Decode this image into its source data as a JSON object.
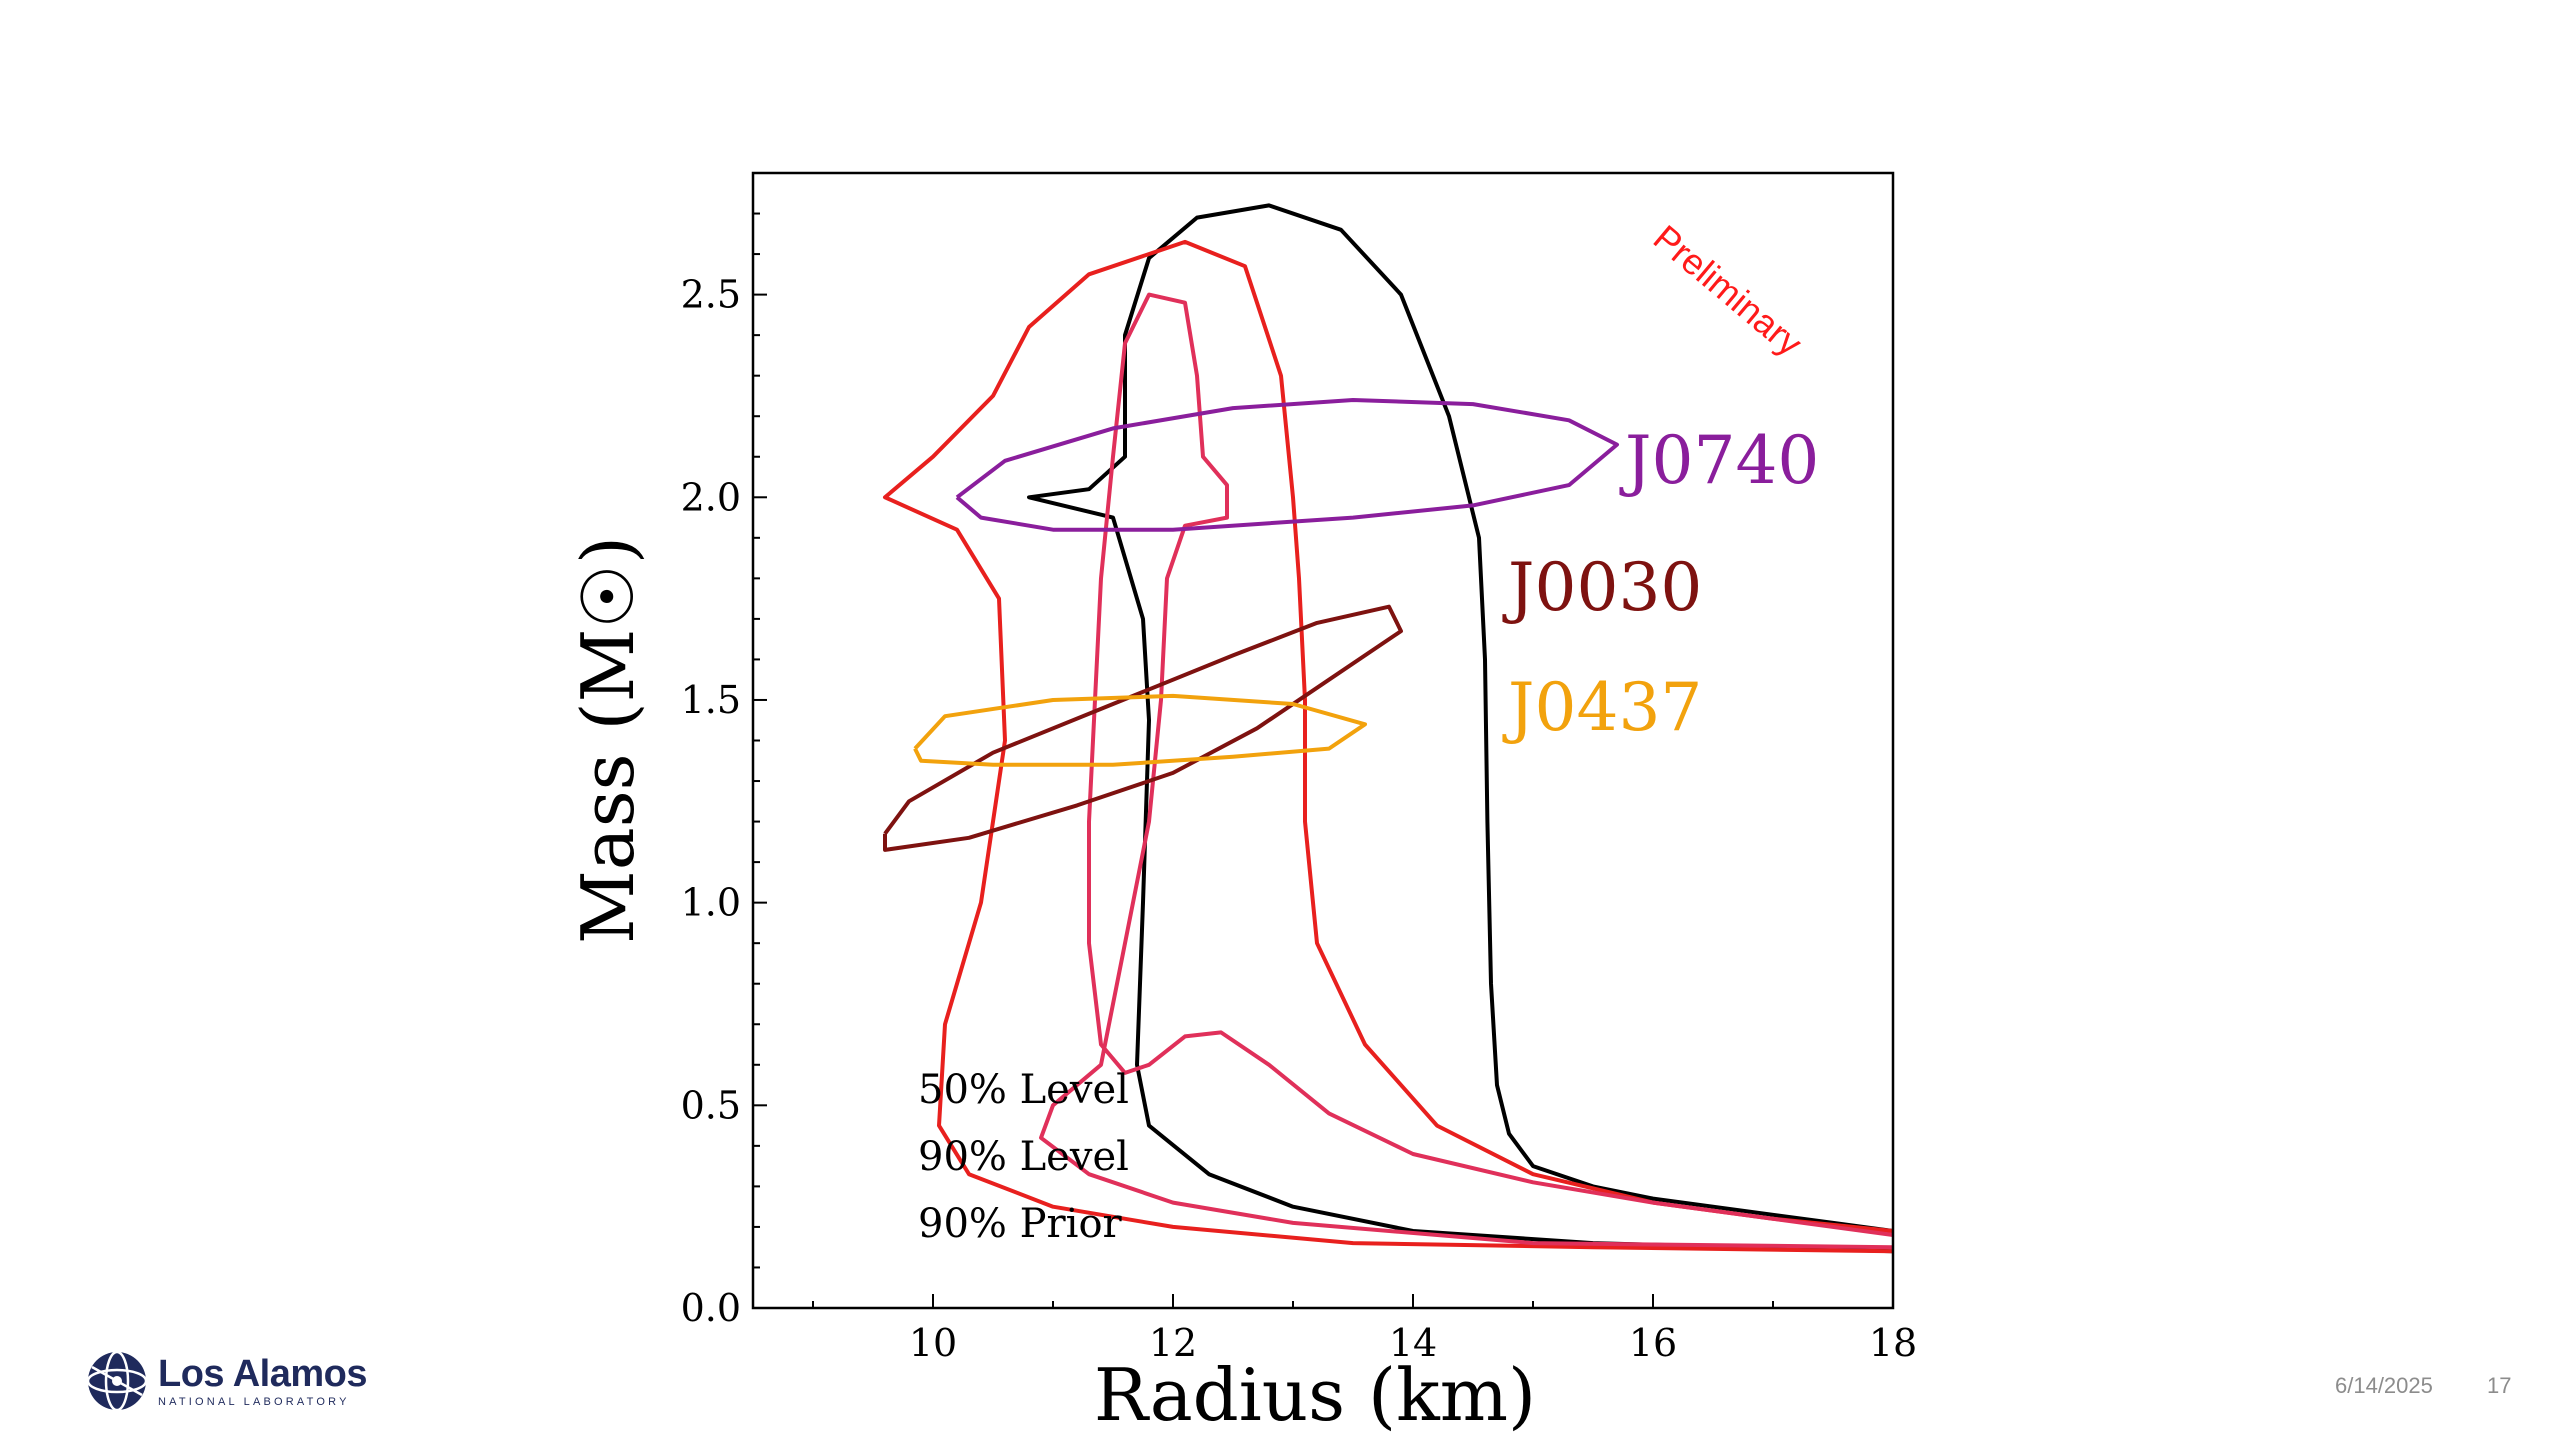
{
  "chart_data": {
    "type": "line",
    "xlabel": "Radius (km)",
    "ylabel": "Mass (M☉)",
    "xlim": [
      8.5,
      18
    ],
    "ylim": [
      0,
      2.8
    ],
    "xticks": [
      10,
      12,
      14,
      16,
      18
    ],
    "yticks": [
      0.0,
      0.5,
      1.0,
      1.5,
      2.0,
      2.5
    ],
    "xtick_labels": [
      "10",
      "12",
      "14",
      "16",
      "18"
    ],
    "ytick_labels": [
      "0.0",
      "0.5",
      "1.0",
      "1.5",
      "2.0",
      "2.5"
    ],
    "annotation": "Preliminary",
    "legend_entries": [
      "50% Level",
      "90% Level",
      "90% Prior"
    ],
    "series": [
      {
        "name": "90% Prior",
        "color": "#000000",
        "points": [
          [
            18.0,
            0.19
          ],
          [
            17.5,
            0.21
          ],
          [
            17.0,
            0.23
          ],
          [
            16.5,
            0.25
          ],
          [
            16.0,
            0.27
          ],
          [
            15.5,
            0.3
          ],
          [
            15.0,
            0.35
          ],
          [
            14.8,
            0.43
          ],
          [
            14.7,
            0.55
          ],
          [
            14.65,
            0.8
          ],
          [
            14.62,
            1.2
          ],
          [
            14.6,
            1.6
          ],
          [
            14.55,
            1.9
          ],
          [
            14.3,
            2.2
          ],
          [
            13.9,
            2.5
          ],
          [
            13.4,
            2.66
          ],
          [
            12.8,
            2.72
          ],
          [
            12.2,
            2.69
          ],
          [
            11.8,
            2.59
          ],
          [
            11.6,
            2.4
          ],
          [
            11.6,
            2.1
          ],
          [
            11.3,
            2.02
          ],
          [
            10.8,
            2.0
          ],
          [
            11.5,
            1.95
          ],
          [
            11.75,
            1.7
          ],
          [
            11.8,
            1.45
          ],
          [
            11.75,
            1.0
          ],
          [
            11.7,
            0.6
          ],
          [
            11.8,
            0.45
          ],
          [
            12.3,
            0.33
          ],
          [
            13.0,
            0.25
          ],
          [
            14.0,
            0.19
          ],
          [
            15.5,
            0.16
          ],
          [
            18.0,
            0.14
          ]
        ]
      },
      {
        "name": "90% Level",
        "color": "#e8201e",
        "points": [
          [
            18.0,
            0.19
          ],
          [
            17.0,
            0.22
          ],
          [
            16.0,
            0.26
          ],
          [
            15.0,
            0.33
          ],
          [
            14.2,
            0.45
          ],
          [
            13.6,
            0.65
          ],
          [
            13.2,
            0.9
          ],
          [
            13.1,
            1.2
          ],
          [
            13.1,
            1.5
          ],
          [
            13.05,
            1.8
          ],
          [
            13.0,
            2.0
          ],
          [
            12.9,
            2.3
          ],
          [
            12.6,
            2.57
          ],
          [
            12.1,
            2.63
          ],
          [
            11.3,
            2.55
          ],
          [
            10.8,
            2.42
          ],
          [
            10.5,
            2.25
          ],
          [
            10.0,
            2.1
          ],
          [
            9.6,
            2.0
          ],
          [
            10.2,
            1.92
          ],
          [
            10.55,
            1.75
          ],
          [
            10.6,
            1.4
          ],
          [
            10.4,
            1.0
          ],
          [
            10.1,
            0.7
          ],
          [
            10.05,
            0.45
          ],
          [
            10.3,
            0.33
          ],
          [
            11.0,
            0.25
          ],
          [
            12.0,
            0.2
          ],
          [
            13.5,
            0.16
          ],
          [
            15.5,
            0.15
          ],
          [
            18.0,
            0.14
          ]
        ]
      },
      {
        "name": "50% Level",
        "color": "#e0305a",
        "points": [
          [
            18.0,
            0.18
          ],
          [
            17.0,
            0.22
          ],
          [
            16.0,
            0.26
          ],
          [
            15.0,
            0.31
          ],
          [
            14.0,
            0.38
          ],
          [
            13.3,
            0.48
          ],
          [
            12.8,
            0.6
          ],
          [
            12.4,
            0.68
          ],
          [
            12.1,
            0.67
          ],
          [
            11.8,
            0.6
          ],
          [
            11.6,
            0.58
          ],
          [
            11.4,
            0.65
          ],
          [
            11.3,
            0.9
          ],
          [
            11.3,
            1.2
          ],
          [
            11.35,
            1.5
          ],
          [
            11.4,
            1.8
          ],
          [
            11.5,
            2.1
          ],
          [
            11.6,
            2.38
          ],
          [
            11.8,
            2.5
          ],
          [
            12.1,
            2.48
          ],
          [
            12.2,
            2.3
          ],
          [
            12.25,
            2.1
          ],
          [
            12.45,
            2.03
          ],
          [
            12.45,
            1.95
          ],
          [
            12.1,
            1.93
          ],
          [
            11.95,
            1.8
          ],
          [
            11.9,
            1.5
          ],
          [
            11.8,
            1.2
          ],
          [
            11.6,
            0.9
          ],
          [
            11.4,
            0.6
          ],
          [
            11.0,
            0.5
          ],
          [
            10.9,
            0.42
          ],
          [
            11.3,
            0.33
          ],
          [
            12.0,
            0.26
          ],
          [
            13.0,
            0.21
          ],
          [
            15.0,
            0.16
          ],
          [
            18.0,
            0.15
          ]
        ]
      },
      {
        "name": "J0740",
        "color": "#8a1e9c",
        "points": [
          [
            10.2,
            2.0
          ],
          [
            10.6,
            2.09
          ],
          [
            11.5,
            2.17
          ],
          [
            12.5,
            2.22
          ],
          [
            13.5,
            2.24
          ],
          [
            14.5,
            2.23
          ],
          [
            15.3,
            2.19
          ],
          [
            15.7,
            2.13
          ],
          [
            15.3,
            2.03
          ],
          [
            14.5,
            1.98
          ],
          [
            13.5,
            1.95
          ],
          [
            12.0,
            1.92
          ],
          [
            11.0,
            1.92
          ],
          [
            10.4,
            1.95
          ],
          [
            10.2,
            2.0
          ]
        ]
      },
      {
        "name": "J0030",
        "color": "#7e1210",
        "points": [
          [
            9.6,
            1.17
          ],
          [
            9.8,
            1.25
          ],
          [
            10.5,
            1.37
          ],
          [
            11.5,
            1.49
          ],
          [
            12.5,
            1.61
          ],
          [
            13.2,
            1.69
          ],
          [
            13.8,
            1.73
          ],
          [
            13.9,
            1.67
          ],
          [
            13.3,
            1.55
          ],
          [
            12.7,
            1.43
          ],
          [
            12.0,
            1.32
          ],
          [
            11.2,
            1.24
          ],
          [
            10.3,
            1.16
          ],
          [
            9.6,
            1.13
          ],
          [
            9.6,
            1.17
          ]
        ]
      },
      {
        "name": "J0437",
        "color": "#f2a20d",
        "points": [
          [
            9.85,
            1.38
          ],
          [
            10.1,
            1.46
          ],
          [
            11.0,
            1.5
          ],
          [
            12.0,
            1.51
          ],
          [
            13.0,
            1.49
          ],
          [
            13.6,
            1.44
          ],
          [
            13.3,
            1.38
          ],
          [
            12.5,
            1.36
          ],
          [
            11.5,
            1.34
          ],
          [
            10.5,
            1.34
          ],
          [
            9.9,
            1.35
          ],
          [
            9.85,
            1.38
          ]
        ]
      }
    ]
  },
  "footer": {
    "logo_main": "Los Alamos",
    "logo_sub": "NATIONAL LABORATORY",
    "date": "6/14/2025",
    "page": "17"
  }
}
